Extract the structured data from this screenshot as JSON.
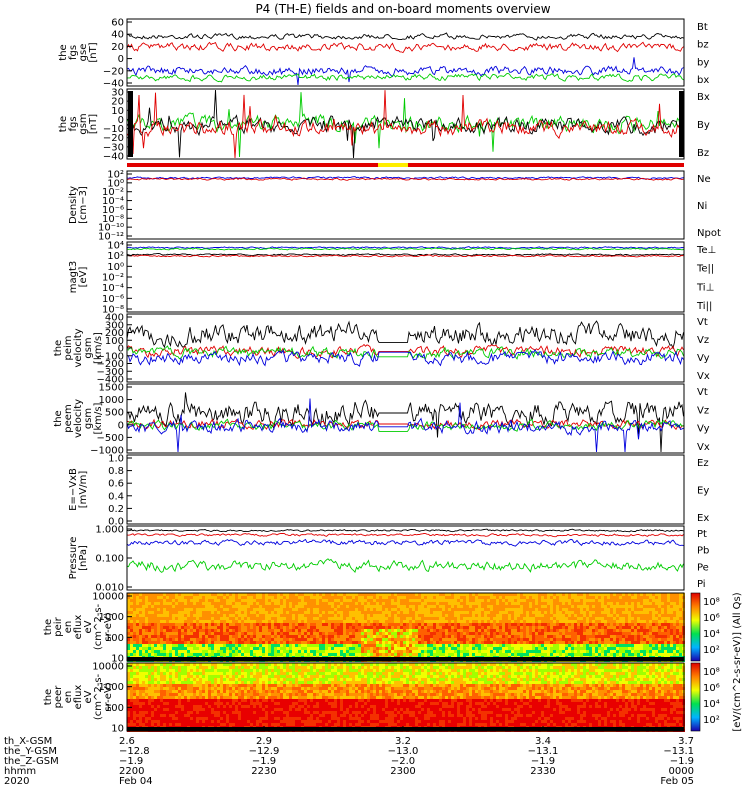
{
  "title": "P4 (TH-E) fields and on-board moments overview",
  "colors": {
    "black": "#000000",
    "red": "#e00000",
    "green": "#00cc00",
    "blue": "#0000dd",
    "yellow": "#ffee00"
  },
  "panels": [
    {
      "id": "fgs-gse",
      "ylabel": [
        "the",
        "fgs",
        "gse",
        "[nT]"
      ],
      "yticks": [
        "60",
        "40",
        "20",
        "0",
        "−20",
        "−40"
      ],
      "legend": [
        {
          "t": "Bt",
          "c": "black"
        },
        {
          "t": "bz",
          "c": "red"
        },
        {
          "t": "by",
          "c": "green"
        },
        {
          "t": "bx",
          "c": "blue"
        }
      ]
    },
    {
      "id": "fgs-gsm",
      "ylabel": [
        "the",
        "fgs",
        "gsm",
        "[nT]"
      ],
      "yticks": [
        "30",
        "20",
        "10",
        "0",
        "−10",
        "−20",
        "−30",
        "−40"
      ],
      "legend": [
        {
          "t": "Bx",
          "c": "black"
        },
        {
          "t": "By",
          "c": "green"
        },
        {
          "t": "Bz",
          "c": "red"
        }
      ]
    },
    {
      "id": "mode-bar",
      "ylabel": [],
      "yticks": [],
      "legend": []
    },
    {
      "id": "density",
      "ylabel": [
        "Density",
        "[cm−3]"
      ],
      "yticks": [
        "10²",
        "10⁰",
        "10⁻²",
        "10⁻⁴",
        "10⁻⁶",
        "10⁻⁸",
        "10⁻¹⁰",
        "10⁻¹²"
      ],
      "legend": [
        {
          "t": "Ne",
          "c": "red"
        },
        {
          "t": "Ni",
          "c": "black"
        },
        {
          "t": "Npot",
          "c": "blue"
        }
      ]
    },
    {
      "id": "temperature",
      "ylabel": [
        "magt3",
        "[eV]"
      ],
      "yticks": [
        "10⁴",
        "10²",
        "10⁰",
        "10⁻²",
        "10⁻⁴",
        "10⁻⁶",
        "10⁻⁸"
      ],
      "legend": [
        {
          "t": "Te⊥",
          "c": "red"
        },
        {
          "t": "Te||",
          "c": "black"
        },
        {
          "t": "Ti⊥",
          "c": "blue"
        },
        {
          "t": "Ti||",
          "c": "green"
        }
      ]
    },
    {
      "id": "peim-velocity",
      "ylabel": [
        "the",
        "peim",
        "velocity",
        "gsm",
        "[km/s]"
      ],
      "yticks": [
        "400",
        "300",
        "200",
        "100",
        "0",
        "−100",
        "−200",
        "−300",
        "−400"
      ],
      "legend": [
        {
          "t": "Vt",
          "c": "black"
        },
        {
          "t": "Vz",
          "c": "red"
        },
        {
          "t": "Vy",
          "c": "green"
        },
        {
          "t": "Vx",
          "c": "blue"
        }
      ]
    },
    {
      "id": "peem-velocity",
      "ylabel": [
        "the",
        "peem",
        "velocity",
        "gsm",
        "[km/s]"
      ],
      "yticks": [
        "1500",
        "1000",
        "500",
        "0",
        "−500",
        "−1000"
      ],
      "legend": [
        {
          "t": "Vt",
          "c": "black"
        },
        {
          "t": "Vz",
          "c": "red"
        },
        {
          "t": "Vy",
          "c": "green"
        },
        {
          "t": "Vx",
          "c": "blue"
        }
      ]
    },
    {
      "id": "efield",
      "ylabel": [
        "E=−VxB",
        "[mV/m]"
      ],
      "yticks": [
        "1.0",
        "0.8",
        "0.6",
        "0.4",
        "0.2",
        "0.0"
      ],
      "legend": [
        {
          "t": "Ez",
          "c": "red"
        },
        {
          "t": "Ey",
          "c": "green"
        },
        {
          "t": "Ex",
          "c": "blue"
        }
      ]
    },
    {
      "id": "pressure",
      "ylabel": [
        "Pressure",
        "[nPa]"
      ],
      "yticks": [
        "1.000",
        "0.100",
        "0.010"
      ],
      "legend": [
        {
          "t": "Pt",
          "c": "black"
        },
        {
          "t": "Pb",
          "c": "red"
        },
        {
          "t": "Pe",
          "c": "green"
        },
        {
          "t": "Pi",
          "c": "blue"
        }
      ]
    },
    {
      "id": "peir-spectrogram",
      "ylabel": [
        "the",
        "peir",
        "en",
        "eflux",
        "eV",
        "(cm^2-s-",
        "sr-eV)"
      ],
      "yticks": [
        "10000",
        "1000",
        "100",
        "10"
      ],
      "legend": []
    },
    {
      "id": "peer-spectrogram",
      "ylabel": [
        "the",
        "peer",
        "en",
        "eflux",
        "eV",
        "(cm^2-s-",
        "sr-eV)"
      ],
      "yticks": [
        "10000",
        "1000",
        "100",
        "10"
      ],
      "legend": []
    }
  ],
  "colorbar": {
    "label": "[eV/(cm^2-s-sr-eV)] (All Qs)",
    "ticks_top": [
      "10⁸",
      "10⁶",
      "10⁴",
      "10²"
    ],
    "ticks_bottom": [
      "10⁸",
      "10⁶",
      "10⁴",
      "10²"
    ]
  },
  "xaxis": {
    "row_labels": [
      "th_X-GSM",
      "the_Y-GSM",
      "the_Z-GSM",
      "hhmm",
      "2020"
    ],
    "ticks": [
      {
        "x": "2.6",
        "y": "−12.8",
        "z": "−1.9",
        "hhmm": "2200",
        "date": "Feb 04"
      },
      {
        "x": "2.9",
        "y": "−12.9",
        "z": "−1.9",
        "hhmm": "2230",
        "date": ""
      },
      {
        "x": "3.2",
        "y": "−13.0",
        "z": "−2.0",
        "hhmm": "2300",
        "date": ""
      },
      {
        "x": "3.4",
        "y": "−13.1",
        "z": "−1.9",
        "hhmm": "2330",
        "date": ""
      },
      {
        "x": "3.7",
        "y": "−13.1",
        "z": "−1.9",
        "hhmm": "0000",
        "date": "Feb 05"
      }
    ]
  },
  "chart_data": {
    "type": "line",
    "title": "P4 (TH-E) fields and on-board moments overview",
    "x_time_range": [
      "2020-02-04 22:00",
      "2020-02-05 00:00"
    ],
    "series_approx": [
      {
        "panel": "fgs-gse",
        "name": "Bt",
        "level": 33
      },
      {
        "panel": "fgs-gse",
        "name": "bz",
        "level": 20
      },
      {
        "panel": "fgs-gse",
        "name": "by",
        "level": -18
      },
      {
        "panel": "fgs-gse",
        "name": "bx",
        "level": -5
      },
      {
        "panel": "peim-velocity",
        "name": "Vt",
        "level": 150
      },
      {
        "panel": "peem-velocity",
        "name": "Vt",
        "level": 250
      },
      {
        "panel": "pressure",
        "name": "Pt",
        "level": 0.45
      },
      {
        "panel": "pressure",
        "name": "Pb",
        "level": 0.35
      },
      {
        "panel": "pressure",
        "name": "Pi",
        "level": 0.18
      },
      {
        "panel": "pressure",
        "name": "Pe",
        "level": 0.03
      }
    ]
  }
}
